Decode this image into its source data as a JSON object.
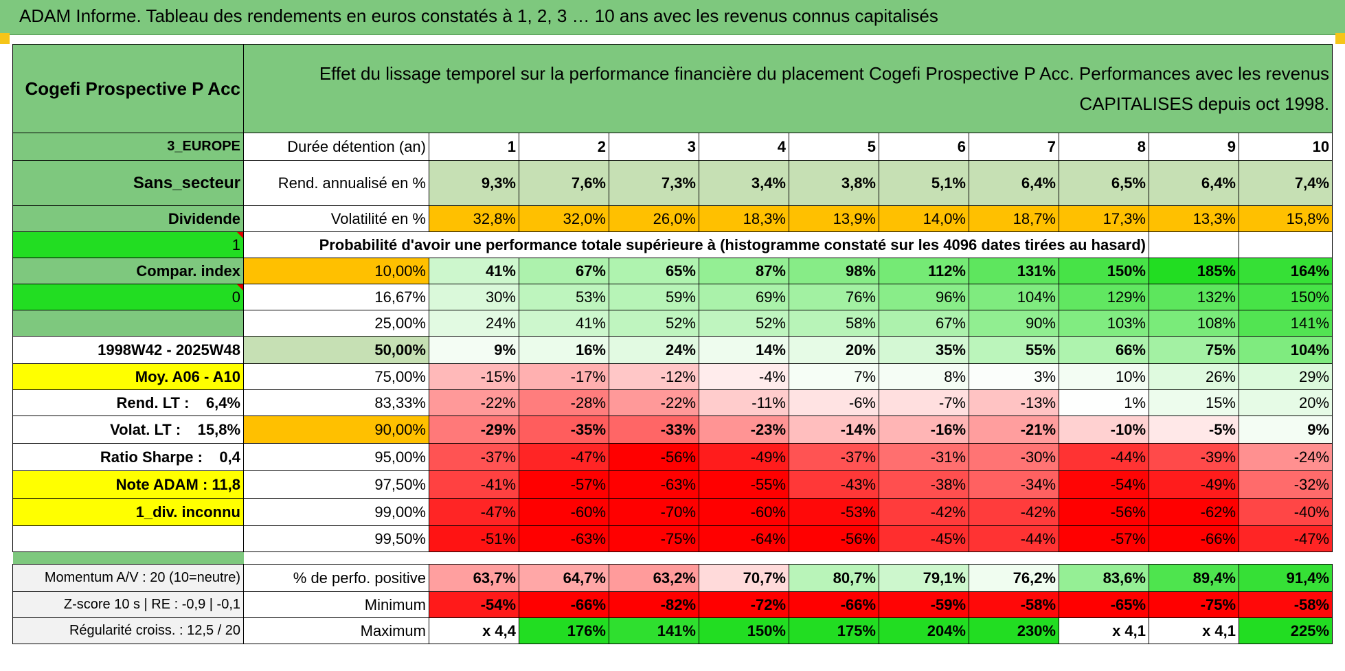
{
  "title": "ADAM Informe. Tableau des rendements en euros constatés à 1, 2, 3 … 10 ans avec les revenus connus capitalisés",
  "fund": {
    "name": "Cogefi Prospective P Acc",
    "description": "Effet du lissage temporel sur la performance financière du placement Cogefi Prospective P Acc. Performances avec les revenus CAPITALISES depuis oct 1998."
  },
  "side": {
    "region": "3_EUROPE",
    "sector": "Sans_secteur",
    "dividend_label": "Dividende",
    "dividend_value": "1",
    "compar_index": "Compar. index",
    "compar_value": "0",
    "period": "1998W42 - 2025W48",
    "moy": "Moy. A06 - A10",
    "rend_lt": "Rend. LT :    6,4%",
    "volat_lt": "Volat. LT :    15,8%",
    "sharpe": "Ratio Sharpe :    0,4",
    "note": "Note ADAM : 11,8",
    "div_info": "1_div. inconnu",
    "momentum": "Momentum A/V : 20 (10=neutre)",
    "zscore": "Z-score 10 s | RE : -0,9 | -0,1",
    "regularite": "Régularité croiss. : 12,5 / 20"
  },
  "header": {
    "duration_label": "Durée détention (an)",
    "years": [
      "1",
      "2",
      "3",
      "4",
      "5",
      "6",
      "7",
      "8",
      "9",
      "10"
    ]
  },
  "rend": {
    "label": "Rend. annualisé en %",
    "values": [
      "9,3%",
      "7,6%",
      "7,3%",
      "3,4%",
      "3,8%",
      "5,1%",
      "6,4%",
      "6,5%",
      "6,4%",
      "7,4%"
    ]
  },
  "volat": {
    "label": "Volatilité en %",
    "values": [
      "32,8%",
      "32,0%",
      "26,0%",
      "18,3%",
      "13,9%",
      "14,0%",
      "18,7%",
      "17,3%",
      "13,3%",
      "15,8%"
    ]
  },
  "prob_title": "Probabilité d'avoir une performance totale supérieure à (histogramme constaté sur les 4096 dates tirées au hasard)",
  "prob_rows": [
    {
      "p": "10,00%",
      "v": [
        "41%",
        "67%",
        "65%",
        "87%",
        "98%",
        "112%",
        "131%",
        "150%",
        "185%",
        "164%"
      ]
    },
    {
      "p": "16,67%",
      "v": [
        "30%",
        "53%",
        "59%",
        "69%",
        "76%",
        "96%",
        "104%",
        "129%",
        "132%",
        "150%"
      ]
    },
    {
      "p": "25,00%",
      "v": [
        "24%",
        "41%",
        "52%",
        "52%",
        "58%",
        "67%",
        "90%",
        "103%",
        "108%",
        "141%"
      ]
    },
    {
      "p": "50,00%",
      "v": [
        "9%",
        "16%",
        "24%",
        "14%",
        "20%",
        "35%",
        "55%",
        "66%",
        "75%",
        "104%"
      ]
    },
    {
      "p": "75,00%",
      "v": [
        "-15%",
        "-17%",
        "-12%",
        "-4%",
        "7%",
        "8%",
        "3%",
        "10%",
        "26%",
        "29%"
      ]
    },
    {
      "p": "83,33%",
      "v": [
        "-22%",
        "-28%",
        "-22%",
        "-11%",
        "-6%",
        "-7%",
        "-13%",
        "1%",
        "15%",
        "20%"
      ]
    },
    {
      "p": "90,00%",
      "v": [
        "-29%",
        "-35%",
        "-33%",
        "-23%",
        "-14%",
        "-16%",
        "-21%",
        "-10%",
        "-5%",
        "9%"
      ]
    },
    {
      "p": "95,00%",
      "v": [
        "-37%",
        "-47%",
        "-56%",
        "-49%",
        "-37%",
        "-31%",
        "-30%",
        "-44%",
        "-39%",
        "-24%"
      ]
    },
    {
      "p": "97,50%",
      "v": [
        "-41%",
        "-57%",
        "-63%",
        "-55%",
        "-43%",
        "-38%",
        "-34%",
        "-54%",
        "-49%",
        "-32%"
      ]
    },
    {
      "p": "99,00%",
      "v": [
        "-47%",
        "-60%",
        "-70%",
        "-60%",
        "-53%",
        "-42%",
        "-42%",
        "-56%",
        "-62%",
        "-40%"
      ]
    },
    {
      "p": "99,50%",
      "v": [
        "-51%",
        "-63%",
        "-75%",
        "-64%",
        "-56%",
        "-45%",
        "-44%",
        "-57%",
        "-66%",
        "-47%"
      ]
    }
  ],
  "stats": [
    {
      "label": "% de perfo. positive",
      "v": [
        "63,7%",
        "64,7%",
        "63,2%",
        "70,7%",
        "80,7%",
        "79,1%",
        "76,2%",
        "83,6%",
        "89,4%",
        "91,4%"
      ]
    },
    {
      "label": "Minimum",
      "v": [
        "-54%",
        "-66%",
        "-82%",
        "-72%",
        "-66%",
        "-59%",
        "-58%",
        "-65%",
        "-75%",
        "-58%"
      ]
    },
    {
      "label": "Maximum",
      "v": [
        "x 4,4",
        "176%",
        "141%",
        "150%",
        "175%",
        "204%",
        "230%",
        "x 4,1",
        "x 4,1",
        "225%"
      ]
    }
  ],
  "colors": {
    "header_green": "#7ec87e",
    "light_green": "#c6e0b4",
    "bright_green": "#22dd22",
    "orange": "#ffc000",
    "yellow": "#ffff00",
    "red_text": "#e00000"
  }
}
